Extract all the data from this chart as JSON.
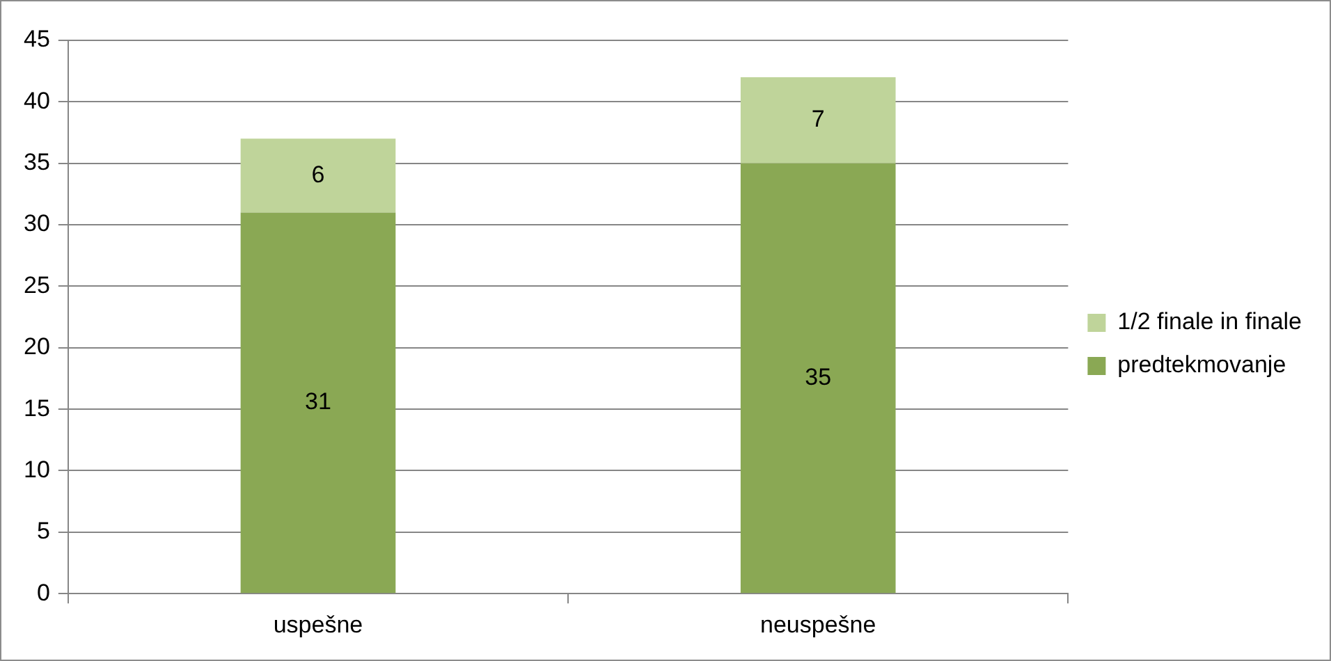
{
  "chart_data": {
    "type": "bar",
    "stacked": true,
    "categories": [
      "uspešne",
      "neuspešne"
    ],
    "series": [
      {
        "name": "predtekmovanje",
        "color": "#8aa854",
        "values": [
          31,
          35
        ]
      },
      {
        "name": "1/2 finale in finale",
        "color": "#bfd49a",
        "values": [
          6,
          7
        ]
      }
    ],
    "ylim": [
      0,
      45
    ],
    "yticks": [
      0,
      5,
      10,
      15,
      20,
      25,
      30,
      35,
      40,
      45
    ],
    "grid": "y",
    "legend": "right",
    "data_labels": true
  }
}
